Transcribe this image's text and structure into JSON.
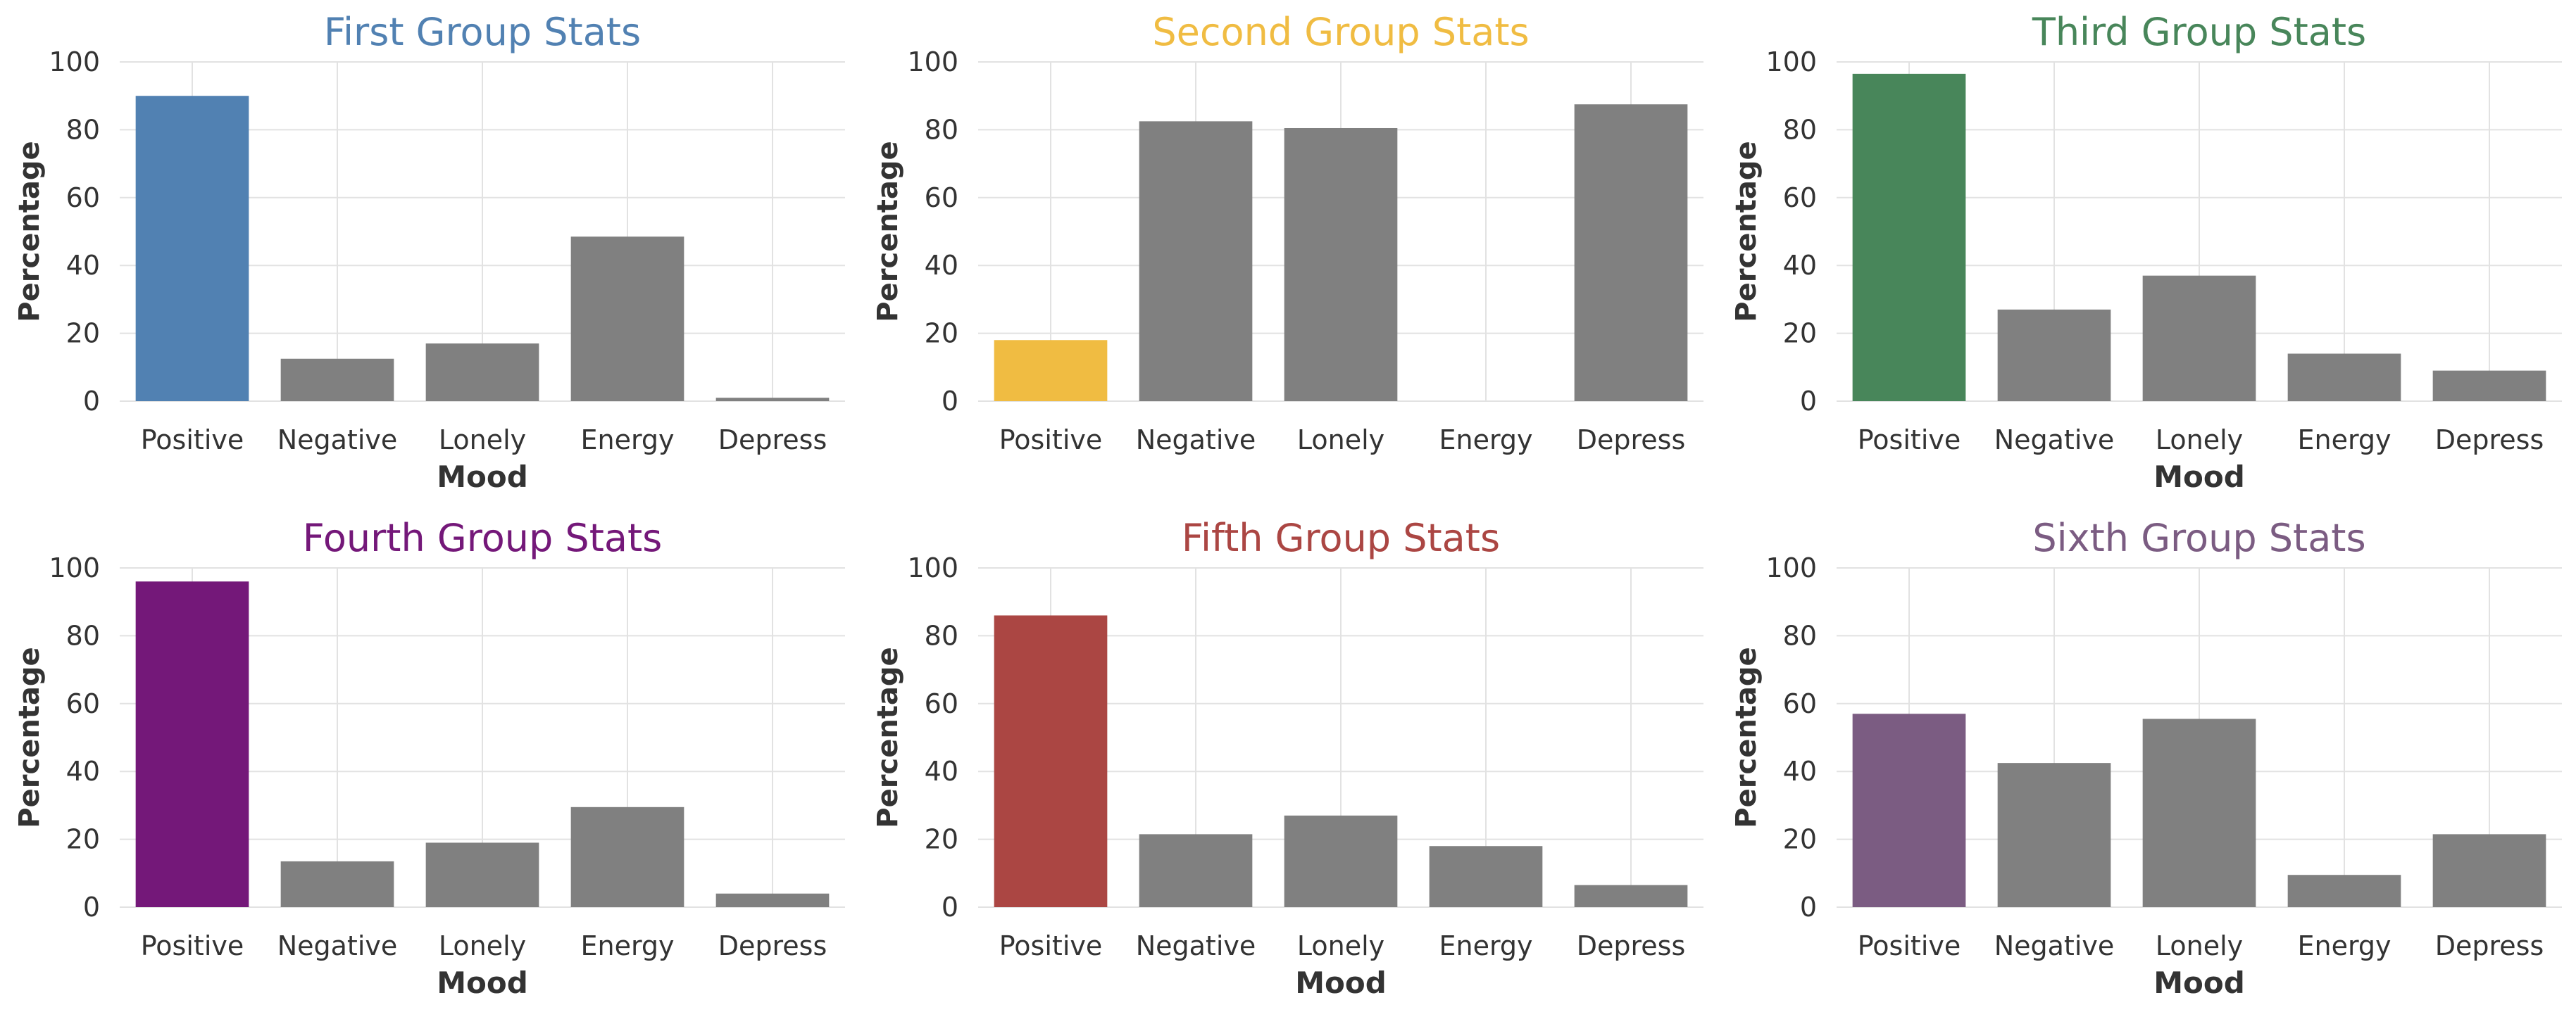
{
  "figure": {
    "background": "#ffffff"
  },
  "chart_data": [
    {
      "type": "bar",
      "title": "First Group Stats",
      "title_color": "#5181b2",
      "xlabel": "Mood",
      "ylabel": "Percentage",
      "categories": [
        "Positive",
        "Negative",
        "Lonely",
        "Energy",
        "Depress"
      ],
      "values": [
        90,
        12.5,
        17,
        48.5,
        1
      ],
      "colors": [
        "#5181b2",
        "#808080",
        "#808080",
        "#808080",
        "#808080"
      ],
      "ylim": [
        0,
        100
      ],
      "yticks": [
        "0",
        "20",
        "40",
        "60",
        "80",
        "100"
      ],
      "grid": true
    },
    {
      "type": "bar",
      "title": "Second Group Stats",
      "title_color": "#f0bc42",
      "xlabel": "",
      "ylabel": "Percentage",
      "categories": [
        "Positive",
        "Negative",
        "Lonely",
        "Energy",
        "Depress"
      ],
      "values": [
        18,
        82.5,
        80.5,
        0,
        87.5
      ],
      "colors": [
        "#f0bc42",
        "#808080",
        "#808080",
        "#808080",
        "#808080"
      ],
      "ylim": [
        0,
        100
      ],
      "yticks": [
        "0",
        "20",
        "40",
        "60",
        "80",
        "100"
      ],
      "grid": true
    },
    {
      "type": "bar",
      "title": "Third Group Stats",
      "title_color": "#48865a",
      "xlabel": "Mood",
      "ylabel": "Percentage",
      "categories": [
        "Positive",
        "Negative",
        "Lonely",
        "Energy",
        "Depress"
      ],
      "values": [
        96.5,
        27,
        37,
        14,
        9
      ],
      "colors": [
        "#48865a",
        "#808080",
        "#808080",
        "#808080",
        "#808080"
      ],
      "ylim": [
        0,
        100
      ],
      "yticks": [
        "0",
        "20",
        "40",
        "60",
        "80",
        "100"
      ],
      "grid": true
    },
    {
      "type": "bar",
      "title": "Fourth Group Stats",
      "title_color": "#741879",
      "xlabel": "Mood",
      "ylabel": "Percentage",
      "categories": [
        "Positive",
        "Negative",
        "Lonely",
        "Energy",
        "Depress"
      ],
      "values": [
        96,
        13.5,
        19,
        29.5,
        4
      ],
      "colors": [
        "#741879",
        "#808080",
        "#808080",
        "#808080",
        "#808080"
      ],
      "ylim": [
        0,
        100
      ],
      "yticks": [
        "0",
        "20",
        "40",
        "60",
        "80",
        "100"
      ],
      "grid": true
    },
    {
      "type": "bar",
      "title": "Fifth Group Stats",
      "title_color": "#ab4643",
      "xlabel": "Mood",
      "ylabel": "Percentage",
      "categories": [
        "Positive",
        "Negative",
        "Lonely",
        "Energy",
        "Depress"
      ],
      "values": [
        86,
        21.5,
        27,
        18,
        6.5
      ],
      "colors": [
        "#ab4643",
        "#808080",
        "#808080",
        "#808080",
        "#808080"
      ],
      "ylim": [
        0,
        100
      ],
      "yticks": [
        "0",
        "20",
        "40",
        "60",
        "80",
        "100"
      ],
      "grid": true
    },
    {
      "type": "bar",
      "title": "Sixth Group Stats",
      "title_color": "#7b5c82",
      "xlabel": "Mood",
      "ylabel": "Percentage",
      "categories": [
        "Positive",
        "Negative",
        "Lonely",
        "Energy",
        "Depress"
      ],
      "values": [
        57,
        42.5,
        55.5,
        9.5,
        21.5
      ],
      "colors": [
        "#7b5c82",
        "#808080",
        "#808080",
        "#808080",
        "#808080"
      ],
      "ylim": [
        0,
        100
      ],
      "yticks": [
        "0",
        "20",
        "40",
        "60",
        "80",
        "100"
      ],
      "grid": true
    }
  ]
}
